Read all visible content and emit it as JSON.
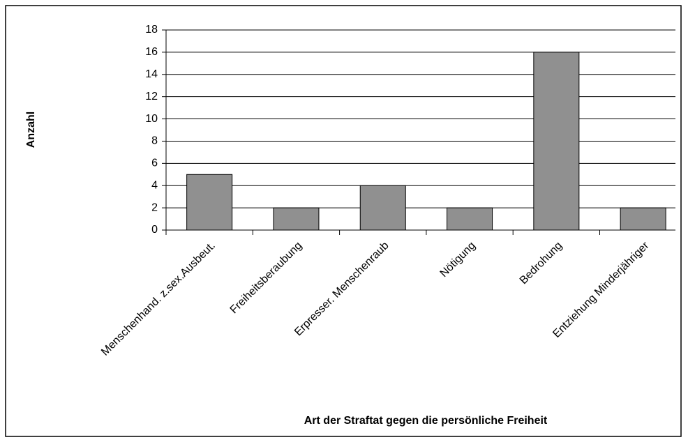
{
  "chart_data": {
    "type": "bar",
    "x_label": "Art der Straftat gegen die persönliche Freiheit",
    "y_label": "Anzahl",
    "categories": [
      "Menschenhand. z.sex.Ausbeut.",
      "Freiheitsberaubung",
      "Erpresser. Menschenraub",
      "Nötigung",
      "Bedrohung",
      "Entziehung Minderjähriger"
    ],
    "values": [
      5,
      2,
      4,
      2,
      16,
      2
    ],
    "color": "#909090",
    "ylim": [
      0,
      18
    ],
    "yticks": [
      0,
      2,
      4,
      6,
      8,
      10,
      12,
      14,
      16,
      18
    ],
    "grid": true
  }
}
